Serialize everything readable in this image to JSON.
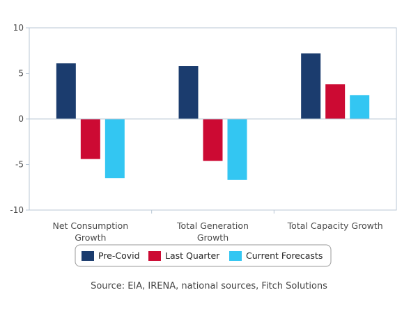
{
  "chart_data": {
    "type": "bar",
    "categories": [
      "Net Consumption Growth",
      "Total Generation Growth",
      "Total Capacity Growth"
    ],
    "category_lines": [
      [
        "Net Consumption",
        "Growth"
      ],
      [
        "Total Generation",
        "Growth"
      ],
      [
        "Total Capacity Growth"
      ]
    ],
    "series": [
      {
        "name": "Pre-Covid",
        "color": "#1b3c6e",
        "values": [
          6.1,
          5.8,
          7.2
        ]
      },
      {
        "name": "Last Quarter",
        "color": "#cc0a33",
        "values": [
          -4.4,
          -4.6,
          3.8
        ]
      },
      {
        "name": "Current Forecasts",
        "color": "#33c6f2",
        "values": [
          -6.5,
          -6.7,
          2.6
        ]
      }
    ],
    "ylim": [
      -10,
      10
    ],
    "yticks": [
      10,
      5,
      0,
      -5,
      -10
    ],
    "legend_position": "bottom-center",
    "title": "",
    "xlabel": "",
    "ylabel": ""
  },
  "source_note": "Source: EIA, IRENA, national sources, Fitch Solutions"
}
